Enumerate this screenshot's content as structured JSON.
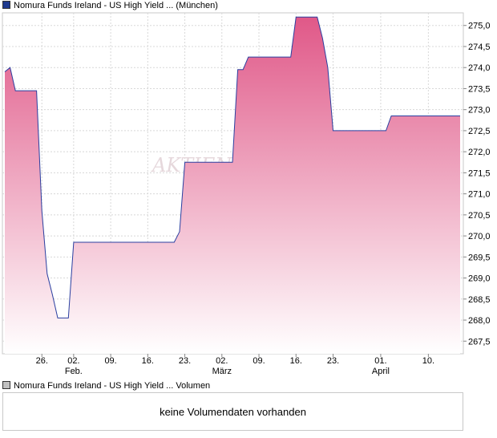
{
  "legend": {
    "main_label": "Nomura Funds Ireland - US High Yield ... (München)",
    "main_color": "#1f3a8f",
    "volume_label": "Nomura Funds Ireland - US High Yield ... Volumen",
    "volume_color": "#c0c0c0"
  },
  "volume_panel": {
    "message": "keine Volumendaten vorhanden"
  },
  "watermark": "AKTIEN",
  "chart_data": {
    "type": "area",
    "line_color": "#2a3fa0",
    "fill_top_color": "#e05888",
    "fill_bottom_color": "#ffffff",
    "ylim": [
      267.2,
      275.3
    ],
    "y_ticks": [
      "267,5",
      "268,0",
      "268,5",
      "269,0",
      "269,5",
      "270,0",
      "270,5",
      "271,0",
      "271,5",
      "272,0",
      "272,5",
      "273,0",
      "273,5",
      "274,0",
      "274,5",
      "275,0"
    ],
    "y_tick_values": [
      267.5,
      268.0,
      268.5,
      269.0,
      269.5,
      270.0,
      270.5,
      271.0,
      271.5,
      272.0,
      272.5,
      273.0,
      273.5,
      274.0,
      274.5,
      275.0
    ],
    "x_ticks": [
      {
        "label": "26.",
        "sub": "",
        "day": 1
      },
      {
        "label": "02.",
        "sub": "Feb.",
        "day": 7
      },
      {
        "label": "09.",
        "sub": "",
        "day": 14
      },
      {
        "label": "16.",
        "sub": "",
        "day": 21
      },
      {
        "label": "23.",
        "sub": "",
        "day": 28
      },
      {
        "label": "02.",
        "sub": "März",
        "day": 35
      },
      {
        "label": "09.",
        "sub": "",
        "day": 42
      },
      {
        "label": "16.",
        "sub": "",
        "day": 49
      },
      {
        "label": "23.",
        "sub": "",
        "day": 56
      },
      {
        "label": "01.",
        "sub": "April",
        "day": 65
      },
      {
        "label": "10.",
        "sub": "",
        "day": 74
      }
    ],
    "x_range": [
      -6,
      80
    ],
    "grid": true,
    "series": [
      {
        "points": [
          [
            -6,
            273.9
          ],
          [
            -5,
            274.0
          ],
          [
            -4,
            273.45
          ],
          [
            -3,
            273.45
          ],
          [
            -2,
            273.45
          ],
          [
            -1,
            273.45
          ],
          [
            0,
            273.45
          ],
          [
            1,
            270.6
          ],
          [
            2,
            269.1
          ],
          [
            3,
            268.6
          ],
          [
            4,
            268.05
          ],
          [
            5,
            268.05
          ],
          [
            6,
            268.05
          ],
          [
            7,
            269.85
          ],
          [
            8,
            269.85
          ],
          [
            9,
            269.85
          ],
          [
            10,
            269.85
          ],
          [
            11,
            269.85
          ],
          [
            12,
            269.85
          ],
          [
            13,
            269.85
          ],
          [
            14,
            269.85
          ],
          [
            15,
            269.85
          ],
          [
            16,
            269.85
          ],
          [
            17,
            269.85
          ],
          [
            18,
            269.85
          ],
          [
            19,
            269.85
          ],
          [
            20,
            269.85
          ],
          [
            21,
            269.85
          ],
          [
            22,
            269.85
          ],
          [
            23,
            269.85
          ],
          [
            24,
            269.85
          ],
          [
            25,
            269.85
          ],
          [
            26,
            269.85
          ],
          [
            27,
            270.1
          ],
          [
            28,
            271.75
          ],
          [
            29,
            271.75
          ],
          [
            30,
            271.75
          ],
          [
            31,
            271.75
          ],
          [
            32,
            271.75
          ],
          [
            33,
            271.75
          ],
          [
            34,
            271.75
          ],
          [
            35,
            271.75
          ],
          [
            36,
            271.75
          ],
          [
            37,
            271.75
          ],
          [
            38,
            273.95
          ],
          [
            39,
            273.95
          ],
          [
            40,
            274.25
          ],
          [
            41,
            274.25
          ],
          [
            42,
            274.25
          ],
          [
            43,
            274.25
          ],
          [
            44,
            274.25
          ],
          [
            45,
            274.25
          ],
          [
            46,
            274.25
          ],
          [
            47,
            274.25
          ],
          [
            48,
            274.25
          ],
          [
            49,
            275.2
          ],
          [
            50,
            275.2
          ],
          [
            51,
            275.2
          ],
          [
            52,
            275.2
          ],
          [
            53,
            275.2
          ],
          [
            54,
            274.7
          ],
          [
            55,
            274.0
          ],
          [
            56,
            272.5
          ],
          [
            57,
            272.5
          ],
          [
            58,
            272.5
          ],
          [
            59,
            272.5
          ],
          [
            60,
            272.5
          ],
          [
            61,
            272.5
          ],
          [
            62,
            272.5
          ],
          [
            63,
            272.5
          ],
          [
            64,
            272.5
          ],
          [
            65,
            272.5
          ],
          [
            66,
            272.5
          ],
          [
            67,
            272.85
          ],
          [
            68,
            272.85
          ],
          [
            69,
            272.85
          ],
          [
            70,
            272.85
          ],
          [
            71,
            272.85
          ],
          [
            72,
            272.85
          ],
          [
            73,
            272.85
          ],
          [
            74,
            272.85
          ],
          [
            75,
            272.85
          ],
          [
            76,
            272.85
          ],
          [
            77,
            272.85
          ],
          [
            78,
            272.85
          ],
          [
            79,
            272.85
          ],
          [
            80,
            272.85
          ]
        ]
      }
    ]
  }
}
